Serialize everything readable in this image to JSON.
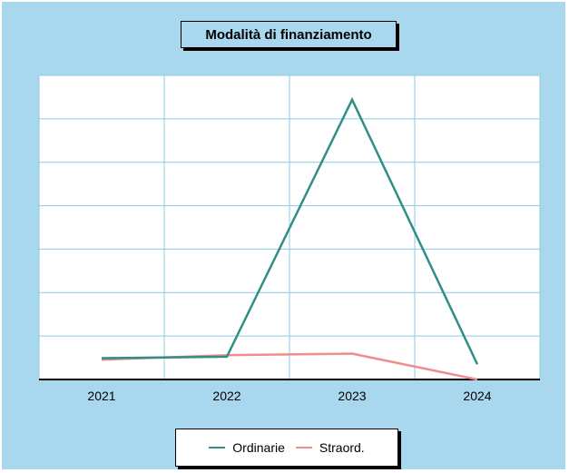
{
  "chart_data": {
    "type": "line",
    "title": "Modalità di finanziamento",
    "categories": [
      "2021",
      "2022",
      "2023",
      "2024"
    ],
    "ylim": [
      0,
      100
    ],
    "grid": true,
    "y_ticks_labeled": false,
    "legend_position": "bottom",
    "series": [
      {
        "name": "Ordinarie",
        "color": "#2f8f86",
        "values": [
          7,
          7.5,
          92,
          5
        ]
      },
      {
        "name": "Straord.",
        "color": "#f08c8c",
        "values": [
          6.5,
          8,
          8.5,
          0
        ]
      }
    ]
  },
  "colors": {
    "background": "#a9d8ee",
    "plot_background": "#ffffff",
    "grid": "#8ccbe0"
  }
}
